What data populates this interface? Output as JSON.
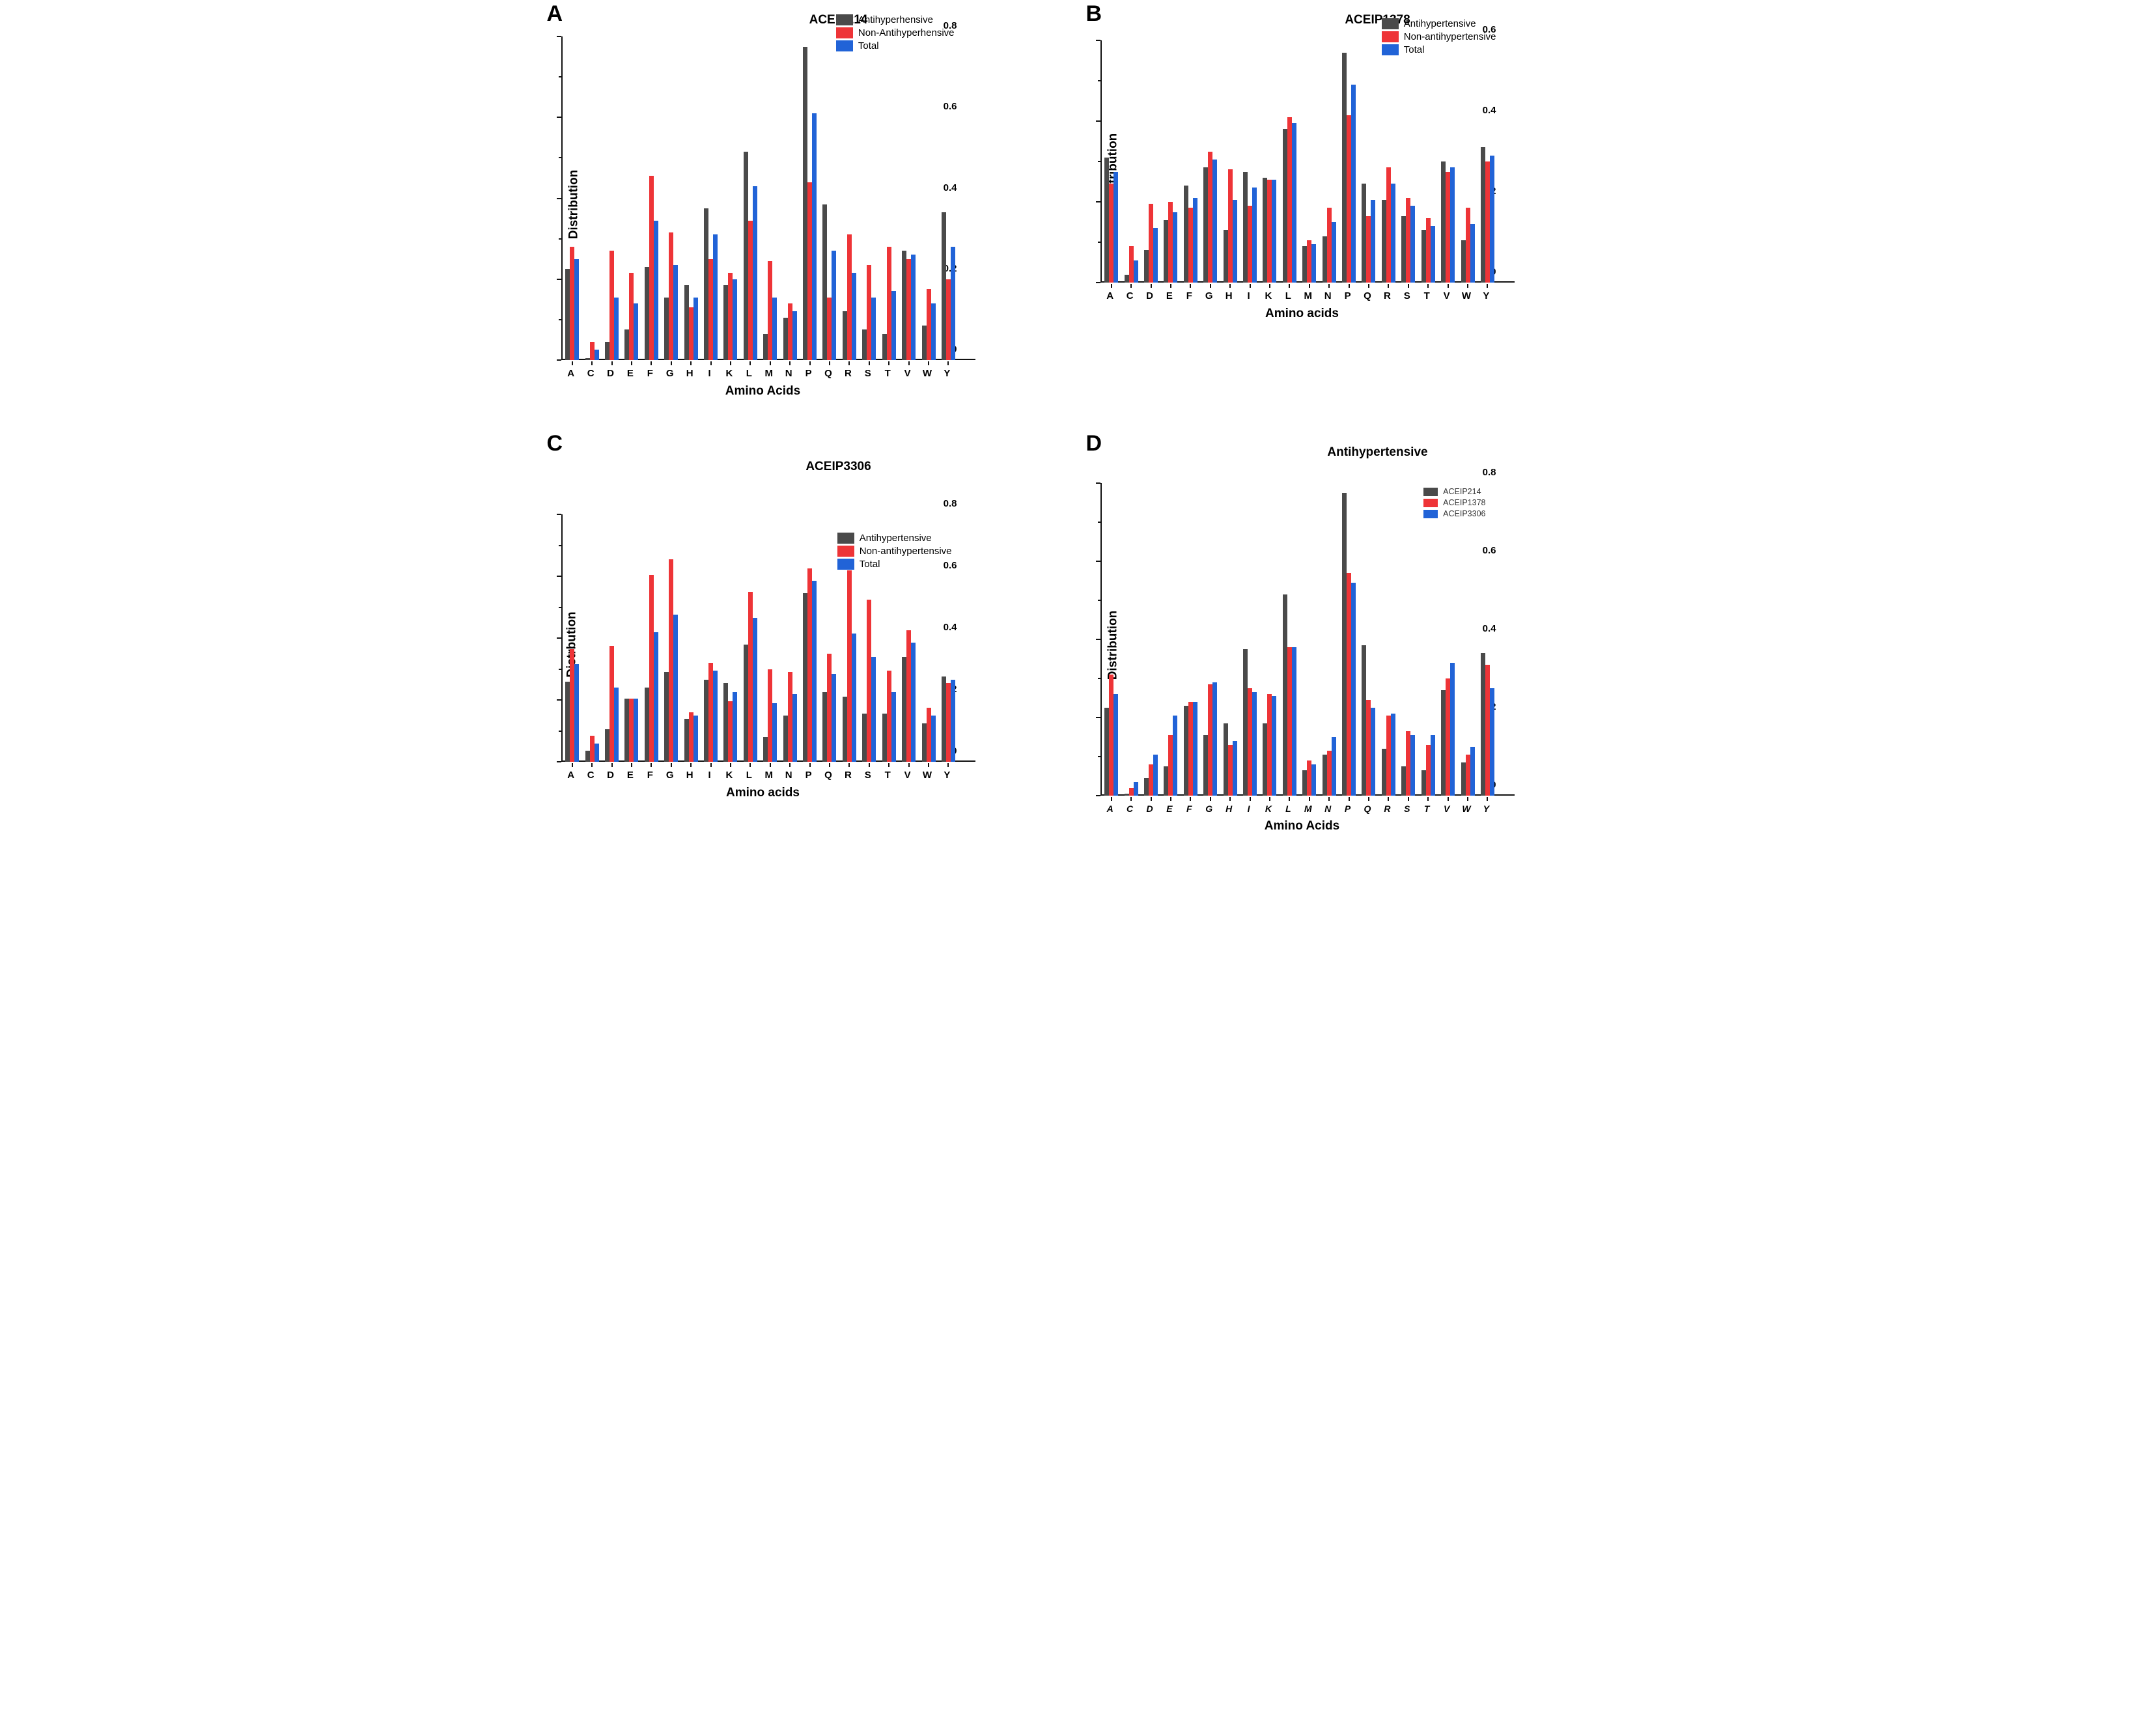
{
  "colors": {
    "antihypertensive_gray": "#4a4a4a",
    "non_antihypertensive_red": "#ee3437",
    "total_blue": "#2163d7",
    "axis_black": "#111111"
  },
  "categories": [
    "A",
    "C",
    "D",
    "E",
    "F",
    "G",
    "H",
    "I",
    "K",
    "L",
    "M",
    "N",
    "P",
    "Q",
    "R",
    "S",
    "T",
    "V",
    "W",
    "Y"
  ],
  "chart_data": [
    {
      "type": "bar",
      "panel_letter": "A",
      "title": "ACEIP214",
      "xlabel": "Amino Acids",
      "ylabel": "Distribution",
      "ylim": [
        0,
        0.8
      ],
      "ytick_step": 0.2,
      "grid": false,
      "legend_position": "top-right",
      "categories": [
        "A",
        "C",
        "D",
        "E",
        "F",
        "G",
        "H",
        "I",
        "K",
        "L",
        "M",
        "N",
        "P",
        "Q",
        "R",
        "S",
        "T",
        "V",
        "W",
        "Y"
      ],
      "series": [
        {
          "name": "Antihyperhensive",
          "color": "#4a4a4a",
          "values": [
            0.225,
            0.005,
            0.045,
            0.075,
            0.23,
            0.155,
            0.185,
            0.375,
            0.185,
            0.515,
            0.065,
            0.105,
            0.775,
            0.385,
            0.12,
            0.075,
            0.065,
            0.27,
            0.085,
            0.365
          ]
        },
        {
          "name": "Non-Antihyperhensive",
          "color": "#ee3437",
          "values": [
            0.28,
            0.045,
            0.27,
            0.215,
            0.455,
            0.315,
            0.13,
            0.25,
            0.215,
            0.345,
            0.245,
            0.14,
            0.44,
            0.155,
            0.31,
            0.235,
            0.28,
            0.25,
            0.175,
            0.2
          ]
        },
        {
          "name": "Total",
          "color": "#2163d7",
          "values": [
            0.25,
            0.025,
            0.155,
            0.14,
            0.345,
            0.235,
            0.155,
            0.31,
            0.2,
            0.43,
            0.155,
            0.12,
            0.61,
            0.27,
            0.215,
            0.155,
            0.17,
            0.26,
            0.14,
            0.28
          ]
        }
      ]
    },
    {
      "type": "bar",
      "panel_letter": "B",
      "title": "ACEIP1378",
      "xlabel": "Amino acids",
      "ylabel": "Distribution",
      "ylim": [
        0,
        0.6
      ],
      "ytick_step": 0.2,
      "grid": false,
      "legend_position": "top-right",
      "categories": [
        "A",
        "C",
        "D",
        "E",
        "F",
        "G",
        "H",
        "I",
        "K",
        "L",
        "M",
        "N",
        "P",
        "Q",
        "R",
        "S",
        "T",
        "V",
        "W",
        "Y"
      ],
      "series": [
        {
          "name": "Antihypertensive",
          "color": "#4a4a4a",
          "values": [
            0.31,
            0.02,
            0.08,
            0.155,
            0.24,
            0.285,
            0.13,
            0.275,
            0.26,
            0.38,
            0.09,
            0.115,
            0.57,
            0.245,
            0.205,
            0.165,
            0.13,
            0.3,
            0.105,
            0.335
          ]
        },
        {
          "name": "Non-antihypertensive",
          "color": "#ee3437",
          "values": [
            0.245,
            0.09,
            0.195,
            0.2,
            0.185,
            0.325,
            0.28,
            0.19,
            0.255,
            0.41,
            0.105,
            0.185,
            0.415,
            0.165,
            0.285,
            0.21,
            0.16,
            0.275,
            0.185,
            0.3
          ]
        },
        {
          "name": "Total",
          "color": "#2163d7",
          "values": [
            0.275,
            0.055,
            0.135,
            0.175,
            0.21,
            0.305,
            0.205,
            0.235,
            0.255,
            0.395,
            0.095,
            0.15,
            0.49,
            0.205,
            0.245,
            0.19,
            0.14,
            0.285,
            0.145,
            0.315
          ]
        }
      ]
    },
    {
      "type": "bar",
      "panel_letter": "C",
      "title": "ACEIP3306",
      "xlabel": "Amino acids",
      "ylabel": "Distrbution",
      "ylim": [
        0,
        0.8
      ],
      "ytick_step": 0.2,
      "grid": false,
      "legend_position": "top-right",
      "categories": [
        "A",
        "C",
        "D",
        "E",
        "F",
        "G",
        "H",
        "I",
        "K",
        "L",
        "M",
        "N",
        "P",
        "Q",
        "R",
        "S",
        "T",
        "V",
        "W",
        "Y"
      ],
      "series": [
        {
          "name": "Antihypertensive",
          "color": "#4a4a4a",
          "values": [
            0.26,
            0.035,
            0.105,
            0.205,
            0.24,
            0.29,
            0.14,
            0.265,
            0.255,
            0.38,
            0.08,
            0.15,
            0.545,
            0.225,
            0.21,
            0.155,
            0.155,
            0.34,
            0.125,
            0.275
          ]
        },
        {
          "name": "Non-antihypertensive",
          "color": "#ee3437",
          "values": [
            0.365,
            0.085,
            0.375,
            0.205,
            0.605,
            0.655,
            0.16,
            0.32,
            0.195,
            0.55,
            0.3,
            0.29,
            0.625,
            0.35,
            0.62,
            0.525,
            0.295,
            0.425,
            0.175,
            0.255
          ]
        },
        {
          "name": "Total",
          "color": "#2163d7",
          "values": [
            0.315,
            0.06,
            0.24,
            0.205,
            0.42,
            0.475,
            0.15,
            0.295,
            0.225,
            0.465,
            0.19,
            0.22,
            0.585,
            0.285,
            0.415,
            0.34,
            0.225,
            0.385,
            0.15,
            0.265
          ]
        }
      ]
    },
    {
      "type": "bar",
      "panel_letter": "D",
      "title": "Antihypertensive",
      "xlabel": "Amino Acids",
      "ylabel": "Distribution",
      "ylim": [
        0,
        0.8
      ],
      "ytick_step": 0.2,
      "grid": false,
      "legend_position": "top-right",
      "categories": [
        "A",
        "C",
        "D",
        "E",
        "F",
        "G",
        "H",
        "I",
        "K",
        "L",
        "M",
        "N",
        "P",
        "Q",
        "R",
        "S",
        "T",
        "V",
        "W",
        "Y"
      ],
      "series": [
        {
          "name": "ACEIP214",
          "color": "#4a4a4a",
          "values": [
            0.225,
            0.005,
            0.045,
            0.075,
            0.23,
            0.155,
            0.185,
            0.375,
            0.185,
            0.515,
            0.065,
            0.105,
            0.775,
            0.385,
            0.12,
            0.075,
            0.065,
            0.27,
            0.085,
            0.365
          ]
        },
        {
          "name": "ACEIP1378",
          "color": "#ee3437",
          "values": [
            0.31,
            0.02,
            0.08,
            0.155,
            0.24,
            0.285,
            0.13,
            0.275,
            0.26,
            0.38,
            0.09,
            0.115,
            0.57,
            0.245,
            0.205,
            0.165,
            0.13,
            0.3,
            0.105,
            0.335
          ]
        },
        {
          "name": "ACEIP3306",
          "color": "#2163d7",
          "values": [
            0.26,
            0.035,
            0.105,
            0.205,
            0.24,
            0.29,
            0.14,
            0.265,
            0.255,
            0.38,
            0.08,
            0.15,
            0.545,
            0.225,
            0.21,
            0.155,
            0.155,
            0.34,
            0.125,
            0.275
          ]
        }
      ]
    }
  ]
}
